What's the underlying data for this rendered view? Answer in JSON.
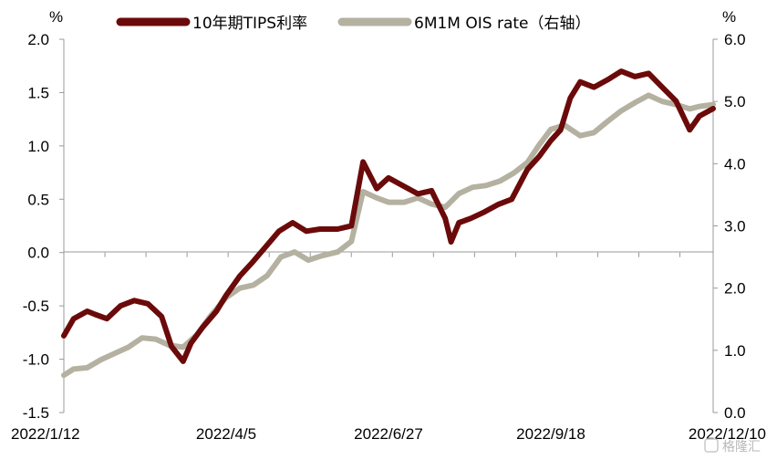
{
  "chart_data": {
    "type": "line",
    "y_left_unit": "%",
    "y_right_unit": "%",
    "ylim_left": [
      -1.5,
      2.0
    ],
    "ylim_right": [
      0.0,
      6.0
    ],
    "y_left_ticks": [
      "2.0",
      "1.5",
      "1.0",
      "0.5",
      "0.0",
      "-0.5",
      "-1.0",
      "-1.5"
    ],
    "y_right_ticks": [
      "6.0",
      "5.0",
      "4.0",
      "3.0",
      "2.0",
      "1.0",
      "0.0"
    ],
    "x_ticks": [
      "2022/1/12",
      "2022/4/5",
      "2022/6/27",
      "2022/9/18",
      "2022/12/10"
    ],
    "legend_placement": "top-center",
    "grid": false,
    "watermark": "格隆汇",
    "series": [
      {
        "name": "10年期TIPS利率",
        "axis": "left",
        "color": "#6b0a0a",
        "x": [
          "2022/1/12",
          "2022/1/17",
          "2022/1/24",
          "2022/1/28",
          "2022/2/3",
          "2022/2/10",
          "2022/2/17",
          "2022/2/24",
          "2022/3/3",
          "2022/3/8",
          "2022/3/14",
          "2022/3/18",
          "2022/3/24",
          "2022/3/31",
          "2022/4/5",
          "2022/4/12",
          "2022/4/18",
          "2022/4/25",
          "2022/5/2",
          "2022/5/9",
          "2022/5/16",
          "2022/5/23",
          "2022/6/1",
          "2022/6/8",
          "2022/6/14",
          "2022/6/21",
          "2022/6/27",
          "2022/7/5",
          "2022/7/12",
          "2022/7/19",
          "2022/7/26",
          "2022/7/29",
          "2022/8/2",
          "2022/8/8",
          "2022/8/15",
          "2022/8/22",
          "2022/8/29",
          "2022/9/6",
          "2022/9/12",
          "2022/9/18",
          "2022/9/23",
          "2022/9/28",
          "2022/10/3",
          "2022/10/10",
          "2022/10/17",
          "2022/10/24",
          "2022/10/31",
          "2022/11/7",
          "2022/11/14",
          "2022/11/21",
          "2022/11/28",
          "2022/12/3",
          "2022/12/10"
        ],
        "values": [
          -0.78,
          -0.62,
          -0.55,
          -0.58,
          -0.62,
          -0.5,
          -0.45,
          -0.48,
          -0.6,
          -0.88,
          -1.02,
          -0.85,
          -0.7,
          -0.55,
          -0.4,
          -0.22,
          -0.1,
          0.05,
          0.2,
          0.28,
          0.2,
          0.22,
          0.22,
          0.25,
          0.85,
          0.6,
          0.7,
          0.62,
          0.55,
          0.58,
          0.32,
          0.1,
          0.28,
          0.32,
          0.38,
          0.45,
          0.5,
          0.78,
          0.9,
          1.05,
          1.15,
          1.45,
          1.6,
          1.55,
          1.62,
          1.7,
          1.65,
          1.68,
          1.55,
          1.42,
          1.15,
          1.28,
          1.35
        ]
      },
      {
        "name": "6M1M OIS rate（右轴）",
        "axis": "right",
        "color": "#b4b1a1",
        "x": [
          "2022/1/12",
          "2022/1/17",
          "2022/1/24",
          "2022/1/31",
          "2022/2/7",
          "2022/2/14",
          "2022/2/21",
          "2022/2/28",
          "2022/3/7",
          "2022/3/14",
          "2022/3/21",
          "2022/3/28",
          "2022/4/5",
          "2022/4/12",
          "2022/4/19",
          "2022/4/26",
          "2022/5/3",
          "2022/5/10",
          "2022/5/17",
          "2022/5/24",
          "2022/6/1",
          "2022/6/8",
          "2022/6/14",
          "2022/6/21",
          "2022/6/27",
          "2022/7/5",
          "2022/7/12",
          "2022/7/19",
          "2022/7/26",
          "2022/8/2",
          "2022/8/9",
          "2022/8/16",
          "2022/8/23",
          "2022/8/30",
          "2022/9/6",
          "2022/9/12",
          "2022/9/18",
          "2022/9/25",
          "2022/10/3",
          "2022/10/10",
          "2022/10/17",
          "2022/10/24",
          "2022/10/31",
          "2022/11/7",
          "2022/11/14",
          "2022/11/21",
          "2022/11/28",
          "2022/12/3",
          "2022/12/10"
        ],
        "values": [
          0.6,
          0.7,
          0.72,
          0.85,
          0.95,
          1.05,
          1.2,
          1.18,
          1.08,
          1.05,
          1.25,
          1.55,
          1.85,
          2.0,
          2.05,
          2.2,
          2.5,
          2.58,
          2.45,
          2.52,
          2.58,
          2.75,
          3.55,
          3.45,
          3.38,
          3.38,
          3.45,
          3.35,
          3.3,
          3.52,
          3.62,
          3.65,
          3.72,
          3.85,
          4.02,
          4.3,
          4.55,
          4.62,
          4.45,
          4.5,
          4.68,
          4.85,
          4.98,
          5.1,
          5.0,
          4.95,
          4.88,
          4.92,
          4.95
        ]
      }
    ]
  }
}
